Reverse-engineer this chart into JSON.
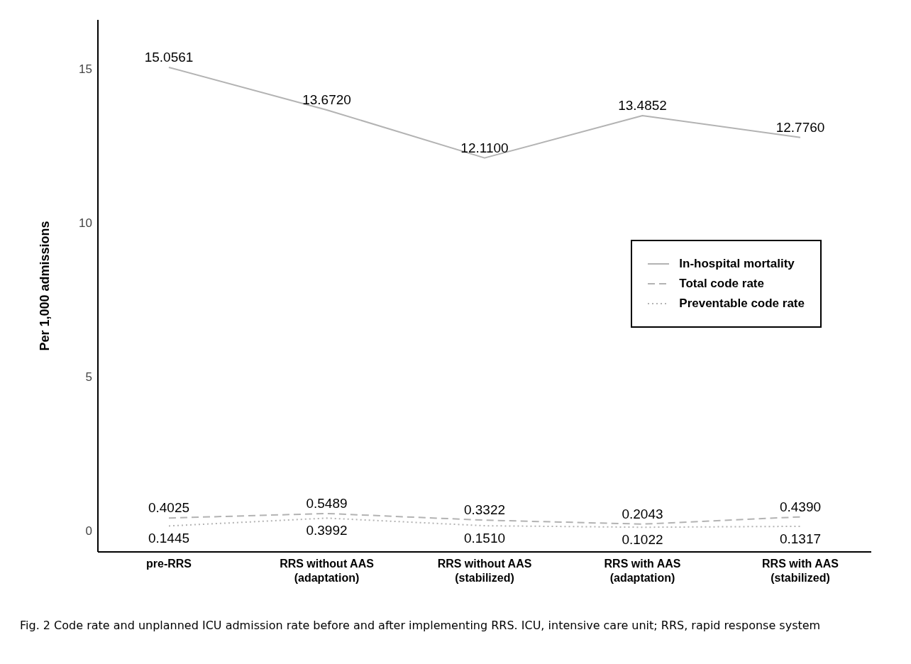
{
  "chart_data": {
    "type": "line",
    "ylabel": "Per 1,000 admissions",
    "categories": [
      "pre-RRS",
      "RRS without AAS\n(adaptation)",
      "RRS without AAS\n(stabilized)",
      "RRS with AAS\n(adaptation)",
      "RRS with AAS\n(stabilized)"
    ],
    "series": [
      {
        "name": "In-hospital mortality",
        "color": "#b3b3b3",
        "line_style": "solid",
        "values": [
          15.0561,
          13.672,
          12.11,
          13.4852,
          12.776
        ],
        "value_labels": [
          "15.0561",
          "13.6720",
          "12.1100",
          "13.4852",
          "12.7760"
        ]
      },
      {
        "name": "Total code rate",
        "color": "#b3b3b3",
        "line_style": "dashed",
        "values": [
          0.4025,
          0.5489,
          0.3322,
          0.2043,
          0.439
        ],
        "value_labels": [
          "0.4025",
          "0.5489",
          "0.3322",
          "0.2043",
          "0.4390"
        ]
      },
      {
        "name": "Preventable code rate",
        "color": "#b3b3b3",
        "line_style": "dotted",
        "values": [
          0.1445,
          0.3992,
          0.151,
          0.1022,
          0.1317
        ],
        "value_labels": [
          "0.1445",
          "0.3992",
          "0.1510",
          "0.1022",
          "0.1317"
        ]
      }
    ],
    "ylim": [
      -0.7,
      16.6
    ],
    "yticks": [
      0,
      5,
      10,
      15
    ],
    "legend": "right",
    "marker": "none",
    "annotations": [
      "Fig. 2  Code rate and unplanned ICU admission rate before and after implementing RRS. ICU, intensive care unit; RRS, rapid response system"
    ]
  }
}
